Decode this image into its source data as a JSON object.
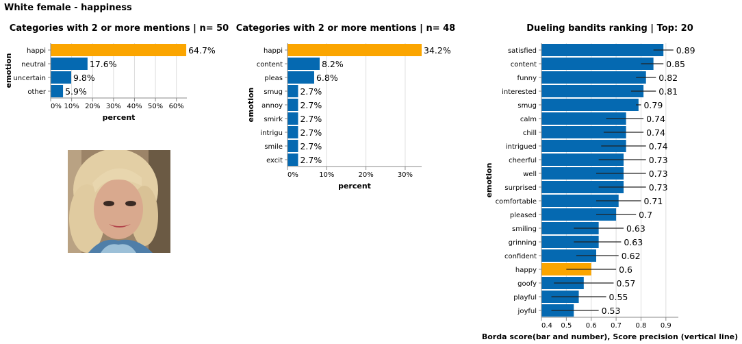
{
  "page_title": "White female - happiness",
  "colors": {
    "bar": "#0569b1",
    "highlight": "#fba500",
    "grid": "#dddddd",
    "axis": "#888888"
  },
  "photo": {
    "icon": "face-photo"
  },
  "chart_data": [
    {
      "type": "bar",
      "orientation": "horizontal",
      "title": "Categories with 2 or more mentions | n= 50",
      "xlabel": "percent",
      "ylabel": "emotion",
      "categories": [
        "happi",
        "neutral",
        "uncertain",
        "other"
      ],
      "values": [
        64.7,
        17.6,
        9.8,
        5.9
      ],
      "value_labels": [
        "64.7%",
        "17.6%",
        "9.8%",
        "5.9%"
      ],
      "highlight": "happi",
      "xlim": [
        0,
        65
      ],
      "xticks": [
        0,
        10,
        20,
        30,
        40,
        50,
        60
      ],
      "xtick_labels": [
        "0%",
        "10%",
        "20%",
        "30%",
        "40%",
        "50%",
        "60%"
      ],
      "grid": true
    },
    {
      "type": "bar",
      "orientation": "horizontal",
      "title": "Categories with 2 or more mentions | n= 48",
      "xlabel": "percent",
      "ylabel": "emotion",
      "categories": [
        "happi",
        "content",
        "pleas",
        "smug",
        "annoy",
        "smirk",
        "intrigu",
        "smile",
        "excit"
      ],
      "values": [
        34.2,
        8.2,
        6.8,
        2.7,
        2.7,
        2.7,
        2.7,
        2.7,
        2.7
      ],
      "value_labels": [
        "34.2%",
        "8.2%",
        "6.8%",
        "2.7%",
        "2.7%",
        "2.7%",
        "2.7%",
        "2.7%",
        "2.7%"
      ],
      "highlight": "happi",
      "xlim": [
        0,
        34.2
      ],
      "xticks": [
        0,
        10,
        20,
        30
      ],
      "xtick_labels": [
        "0%",
        "10%",
        "20%",
        "30%"
      ],
      "grid": true
    },
    {
      "type": "bar",
      "orientation": "horizontal",
      "title": "Dueling bandits ranking | Top: 20",
      "xlabel": "Borda score(bar and number), Score precision (vertical line)",
      "ylabel": "emotion",
      "categories": [
        "satisfied",
        "content",
        "funny",
        "interested",
        "smug",
        "calm",
        "chill",
        "intrigued",
        "cheerful",
        "well",
        "surprised",
        "comfortable",
        "pleased",
        "smiling",
        "grinning",
        "confident",
        "happy",
        "goofy",
        "playful",
        "joyful"
      ],
      "values": [
        0.89,
        0.85,
        0.82,
        0.81,
        0.79,
        0.74,
        0.74,
        0.74,
        0.73,
        0.73,
        0.73,
        0.71,
        0.7,
        0.63,
        0.63,
        0.62,
        0.6,
        0.57,
        0.55,
        0.53
      ],
      "value_labels": [
        "0.89",
        "0.85",
        "0.82",
        "0.81",
        "0.79",
        "0.74",
        "0.74",
        "0.74",
        "0.73",
        "0.73",
        "0.73",
        "0.71",
        "0.7",
        "0.63",
        "0.63",
        "0.62",
        "0.6",
        "0.57",
        "0.55",
        "0.53"
      ],
      "error_low": [
        0.85,
        0.8,
        0.78,
        0.76,
        0.78,
        0.66,
        0.65,
        0.64,
        0.63,
        0.62,
        0.63,
        0.62,
        0.62,
        0.53,
        0.53,
        0.54,
        0.5,
        0.45,
        0.44,
        0.44
      ],
      "error_high": [
        0.93,
        0.89,
        0.86,
        0.86,
        0.8,
        0.81,
        0.81,
        0.82,
        0.82,
        0.82,
        0.82,
        0.8,
        0.78,
        0.73,
        0.72,
        0.71,
        0.7,
        0.69,
        0.66,
        0.63
      ],
      "highlight": "happy",
      "xlim": [
        0.4,
        0.95
      ],
      "xticks": [
        0.4,
        0.5,
        0.6,
        0.7,
        0.8,
        0.9
      ],
      "xtick_labels": [
        "0.4",
        "0.5",
        "0.6",
        "0.7",
        "0.8",
        "0.9"
      ],
      "grid": true
    }
  ]
}
